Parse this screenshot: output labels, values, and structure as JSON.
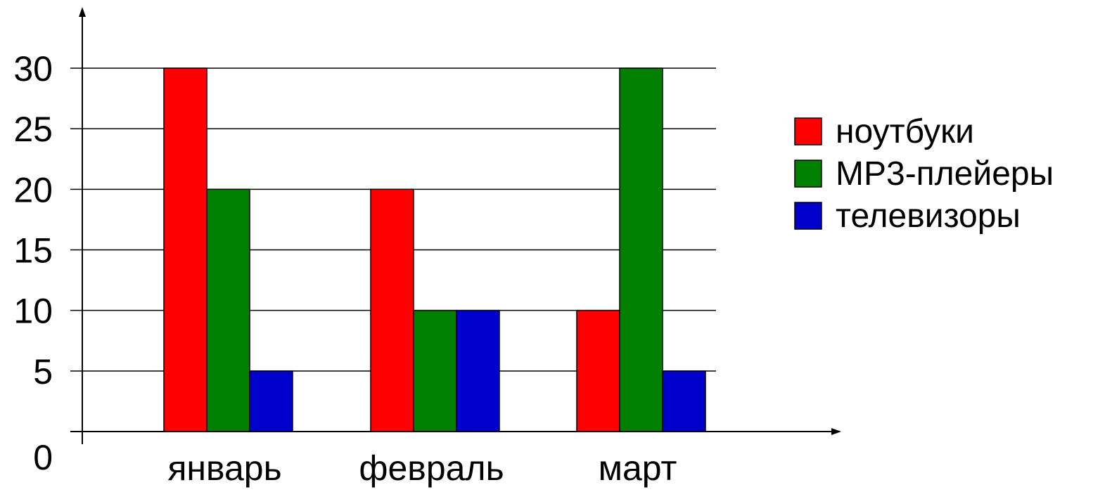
{
  "chart_data": {
    "type": "bar",
    "categories": [
      "январь",
      "февраль",
      "март"
    ],
    "series": [
      {
        "name": "ноутбуки",
        "color": "#ff0000",
        "values": [
          30,
          20,
          10
        ]
      },
      {
        "name": "MP3-плейеры",
        "color": "#007f00",
        "values": [
          20,
          10,
          30
        ]
      },
      {
        "name": "телевизоры",
        "color": "#0000cc",
        "values": [
          5,
          10,
          5
        ]
      }
    ],
    "yticks": [
      "0",
      "5",
      "10",
      "15",
      "20",
      "25",
      "30"
    ],
    "ylim": [
      0,
      30
    ],
    "grid": true,
    "legend_position": "right",
    "title": "",
    "xlabel": "",
    "ylabel": ""
  }
}
